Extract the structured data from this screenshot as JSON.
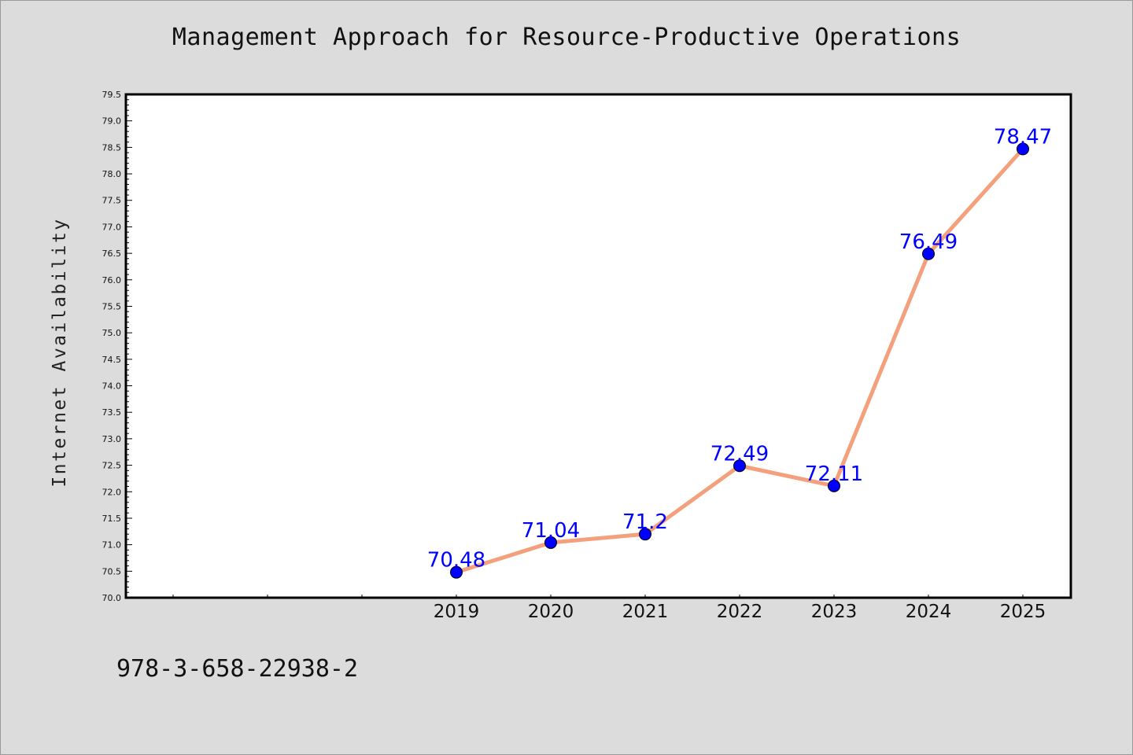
{
  "chart_data": {
    "type": "line",
    "title": "Management Approach for Resource-Productive Operations",
    "xlabel": "",
    "ylabel": "Internet Availability",
    "categories": [
      "2019",
      "2020",
      "2021",
      "2022",
      "2023",
      "2024",
      "2025"
    ],
    "series": [
      {
        "values": [
          70.48,
          71.04,
          71.2,
          72.49,
          72.11,
          76.49,
          78.47
        ],
        "labels": [
          "70.48",
          "71.04",
          "71.2",
          "72.49",
          "72.11",
          "76.49",
          "78.47"
        ],
        "line_color": "#f4a07c",
        "marker_color": "#0000ff"
      }
    ],
    "ylim": [
      70.0,
      79.5
    ],
    "y_ticks": [
      "70.0",
      "70.5",
      "71.0",
      "71.5",
      "72.0",
      "72.5",
      "73.0",
      "73.5",
      "74.0",
      "74.5",
      "75.0",
      "75.5",
      "76.0",
      "76.5",
      "77.0",
      "77.5",
      "78.0",
      "78.5",
      "79.0",
      "79.5"
    ],
    "grid": false,
    "legend": "none",
    "plot_background": "#ffffff",
    "figure_background": "#dcdcdc",
    "data_label_color": "#0000ff"
  },
  "footer": {
    "isbn": "978-3-658-22938-2"
  }
}
